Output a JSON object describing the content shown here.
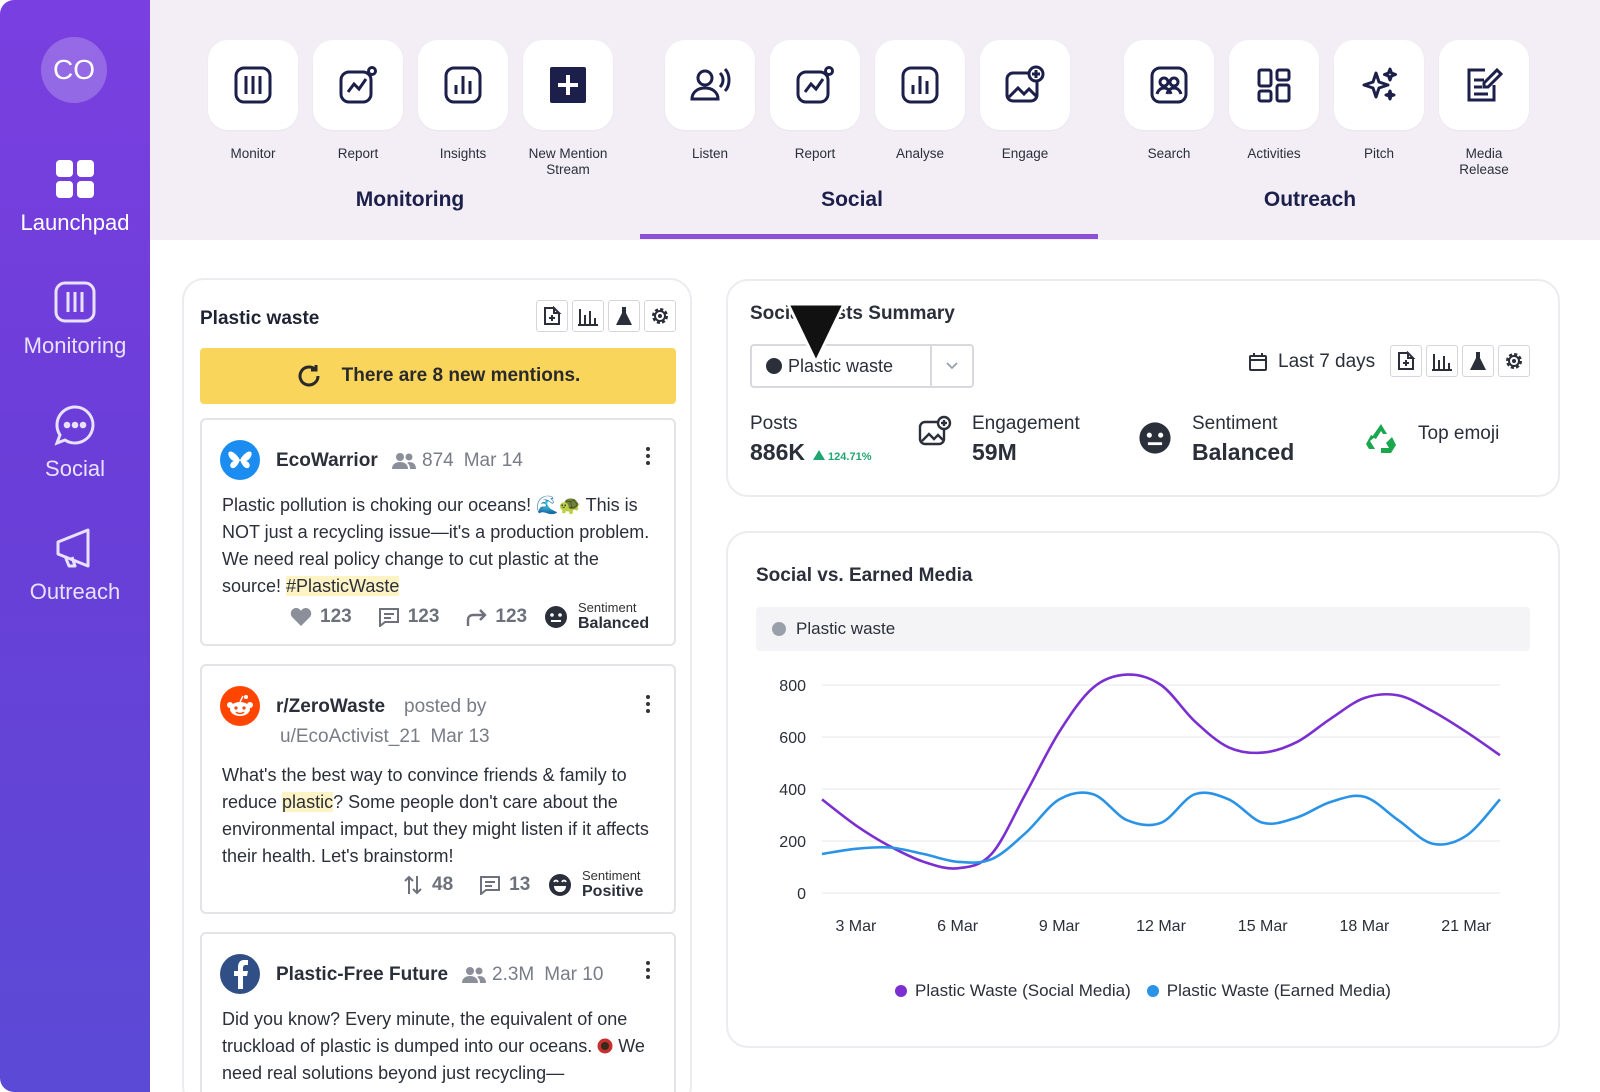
{
  "sidebar": {
    "avatar": "CO",
    "items": [
      {
        "label": "Launchpad"
      },
      {
        "label": "Monitoring"
      },
      {
        "label": "Social"
      },
      {
        "label": "Outreach"
      }
    ]
  },
  "topbar": {
    "groups": [
      {
        "label": "Monitoring",
        "tiles": [
          "Monitor",
          "Report",
          "Insights",
          "New Mention Stream"
        ]
      },
      {
        "label": "Social",
        "tiles": [
          "Listen",
          "Report",
          "Analyse",
          "Engage"
        ]
      },
      {
        "label": "Outreach",
        "tiles": [
          "Search",
          "Activities",
          "Pitch",
          "Media Release"
        ]
      }
    ],
    "active_group": "Social"
  },
  "feed": {
    "title": "Plastic waste",
    "banner": "There are 8 new mentions.",
    "posts": [
      {
        "name": "EcoWarrior",
        "followers": "874",
        "date": "Mar 14",
        "body_pre": "Plastic pollution is choking our oceans! 🌊🐢 This is NOT just a recycling issue—it's a production problem. We need real policy change to cut plastic at the source! ",
        "body_highlight": "#PlasticWaste",
        "likes": "123",
        "comments": "123",
        "shares": "123",
        "sentiment_label": "Sentiment",
        "sentiment": "Balanced"
      },
      {
        "name": "r/ZeroWaste",
        "posted_by": "posted by",
        "user": "u/EcoActivist_21",
        "date": "Mar 13",
        "body_pre": "What's the best way to convince friends & family to reduce ",
        "body_highlight": "plastic",
        "body_post": "? Some people don't care about the environmental impact, but they might listen if it affects their health. Let's brainstorm!",
        "votes": "48",
        "comments": "13",
        "sentiment_label": "Sentiment",
        "sentiment": "Positive"
      },
      {
        "name": "Plastic-Free Future",
        "followers": "2.3M",
        "date": "Mar 10",
        "body_pre": "Did you know? Every minute, the equivalent of one truckload of plastic is dumped into our oceans.",
        "body_post": " We need real solutions beyond just recycling—"
      }
    ]
  },
  "summary": {
    "title": "Social Posts Summary",
    "topic": "Plastic waste",
    "date_range": "Last 7 days",
    "posts_label": "Posts",
    "posts_value": "886K",
    "posts_growth": "124.71%",
    "engagement_label": "Engagement",
    "engagement_value": "59M",
    "sentiment_label": "Sentiment",
    "sentiment_value": "Balanced",
    "emoji_label": "Top emoji"
  },
  "chart_card": {
    "title": "Social vs. Earned Media",
    "filter": "Plastic waste"
  },
  "colors": {
    "sidebar": "#6a3ed8",
    "accent": "#8b4fd8",
    "banner": "#f9d55c",
    "social_series": "#7b2fd1",
    "earned_series": "#2a93e6"
  },
  "chart_data": {
    "type": "line",
    "x": [
      "2 Mar",
      "3 Mar",
      "4 Mar",
      "5 Mar",
      "6 Mar",
      "7 Mar",
      "8 Mar",
      "9 Mar",
      "10 Mar",
      "11 Mar",
      "12 Mar",
      "13 Mar",
      "14 Mar",
      "15 Mar",
      "16 Mar",
      "17 Mar",
      "18 Mar",
      "19 Mar",
      "20 Mar",
      "21 Mar",
      "22 Mar"
    ],
    "x_tick_labels": [
      "3 Mar",
      "6 Mar",
      "9 Mar",
      "12 Mar",
      "15 Mar",
      "18 Mar",
      "21 Mar"
    ],
    "series": [
      {
        "name": "Plastic Waste (Social Media)",
        "color": "#7b2fd1",
        "values": [
          360,
          260,
          180,
          120,
          95,
          150,
          380,
          620,
          790,
          840,
          800,
          660,
          560,
          540,
          580,
          670,
          750,
          760,
          700,
          620,
          530
        ]
      },
      {
        "name": "Plastic Waste (Earned Media)",
        "color": "#2a93e6",
        "values": [
          150,
          170,
          175,
          150,
          120,
          130,
          230,
          360,
          380,
          280,
          270,
          380,
          360,
          270,
          290,
          350,
          370,
          280,
          190,
          220,
          360
        ]
      }
    ],
    "ylim": [
      0,
      800
    ],
    "y_ticks": [
      0,
      200,
      400,
      600,
      800
    ],
    "grid": true,
    "legend": "bottom"
  }
}
